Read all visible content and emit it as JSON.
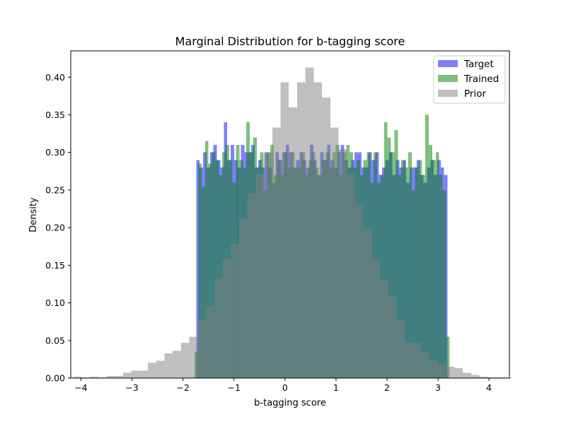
{
  "chart_data": {
    "type": "bar",
    "title": "Marginal Distribution for b-tagging score",
    "xlabel": "b-tagging score",
    "ylabel": "Density",
    "xlim": [
      -4.2,
      4.4
    ],
    "ylim": [
      0,
      0.435
    ],
    "xticks": [
      -4,
      -3,
      -2,
      -1,
      0,
      1,
      2,
      3,
      4
    ],
    "yticks": [
      0.0,
      0.05,
      0.1,
      0.15,
      0.2,
      0.25,
      0.3,
      0.35,
      0.4
    ],
    "xtick_labels": [
      "−4",
      "−3",
      "−2",
      "−1",
      "0",
      "1",
      "2",
      "3",
      "4"
    ],
    "ytick_labels": [
      "0.00",
      "0.05",
      "0.10",
      "0.15",
      "0.20",
      "0.25",
      "0.30",
      "0.35",
      "0.40"
    ],
    "grid": false,
    "legend_position": "top-right",
    "series": [
      {
        "name": "Target",
        "color": "#0000ff",
        "alpha": 0.5,
        "bin_start": -1.74,
        "bin_width": 0.0675,
        "values": [
          0.29,
          0.28,
          0.3,
          0.28,
          0.3,
          0.31,
          0.29,
          0.28,
          0.34,
          0.29,
          0.31,
          0.29,
          0.28,
          0.31,
          0.3,
          0.3,
          0.31,
          0.28,
          0.29,
          0.28,
          0.3,
          0.28,
          0.26,
          0.3,
          0.29,
          0.3,
          0.31,
          0.3,
          0.28,
          0.29,
          0.3,
          0.29,
          0.28,
          0.31,
          0.29,
          0.27,
          0.3,
          0.29,
          0.31,
          0.29,
          0.28,
          0.3,
          0.31,
          0.29,
          0.28,
          0.29,
          0.3,
          0.3,
          0.28,
          0.28,
          0.3,
          0.29,
          0.3,
          0.27,
          0.28,
          0.29,
          0.3,
          0.27,
          0.29,
          0.28,
          0.29,
          0.26,
          0.28,
          0.28,
          0.29,
          0.27,
          0.26,
          0.28,
          0.29,
          0.27,
          0.29,
          0.28,
          0.27
        ]
      },
      {
        "name": "Trained",
        "color": "#008000",
        "alpha": 0.5,
        "bin_start": -1.77,
        "bin_width": 0.0675,
        "values": [
          0.035,
          0.285,
          0.255,
          0.315,
          0.285,
          0.3,
          0.29,
          0.27,
          0.3,
          0.31,
          0.29,
          0.26,
          0.31,
          0.29,
          0.28,
          0.34,
          0.3,
          0.32,
          0.28,
          0.3,
          0.25,
          0.3,
          0.31,
          0.27,
          0.29,
          0.27,
          0.3,
          0.28,
          0.3,
          0.28,
          0.28,
          0.3,
          0.27,
          0.29,
          0.3,
          0.28,
          0.27,
          0.29,
          0.3,
          0.28,
          0.3,
          0.31,
          0.27,
          0.3,
          0.31,
          0.3,
          0.28,
          0.29,
          0.27,
          0.29,
          0.3,
          0.26,
          0.3,
          0.26,
          0.27,
          0.34,
          0.32,
          0.3,
          0.33,
          0.27,
          0.29,
          0.28,
          0.3,
          0.25,
          0.28,
          0.29,
          0.27,
          0.35,
          0.31,
          0.29,
          0.3,
          0.27,
          0.25,
          0.055
        ]
      },
      {
        "name": "Prior",
        "color": "#808080",
        "alpha": 0.5,
        "bin_start": -4.15,
        "bin_width": 0.1625,
        "values": [
          0.002,
          0.001,
          0.002,
          0.001,
          0.003,
          0.003,
          0.007,
          0.01,
          0.01,
          0.02,
          0.023,
          0.033,
          0.036,
          0.047,
          0.055,
          0.078,
          0.095,
          0.133,
          0.159,
          0.178,
          0.212,
          0.245,
          0.271,
          0.3,
          0.333,
          0.393,
          0.36,
          0.393,
          0.413,
          0.393,
          0.373,
          0.333,
          0.304,
          0.271,
          0.23,
          0.198,
          0.158,
          0.13,
          0.109,
          0.078,
          0.048,
          0.047,
          0.034,
          0.024,
          0.018,
          0.015,
          0.013,
          0.007,
          0.004,
          0.002,
          0.001,
          0.001,
          0.001
        ]
      }
    ]
  }
}
